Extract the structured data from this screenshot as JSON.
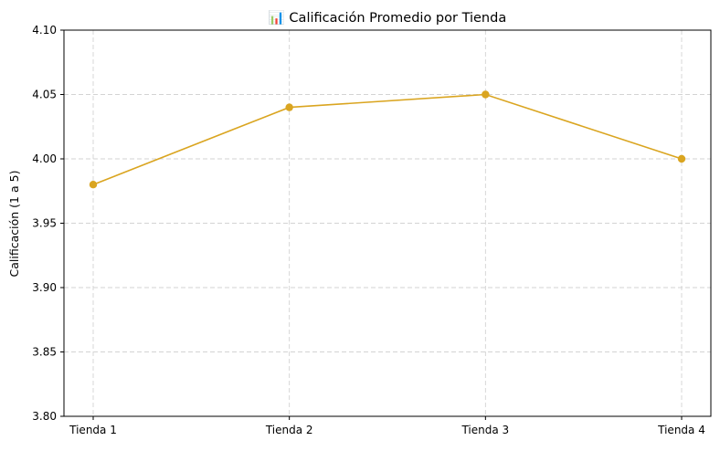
{
  "chart_data": {
    "type": "line",
    "title": "📊 Calificación Promedio por Tienda",
    "xlabel": "",
    "ylabel": "Calificación (1 a 5)",
    "categories": [
      "Tienda 1",
      "Tienda 2",
      "Tienda 3",
      "Tienda 4"
    ],
    "series": [
      {
        "values": [
          3.98,
          4.04,
          4.05,
          4.0
        ]
      }
    ],
    "ylim": [
      3.8,
      4.1
    ],
    "yticks": [
      "3.80",
      "3.85",
      "3.90",
      "3.95",
      "4.00",
      "4.05",
      "4.10"
    ],
    "grid": true,
    "line_color": "#DAA520",
    "marker": "circle"
  }
}
